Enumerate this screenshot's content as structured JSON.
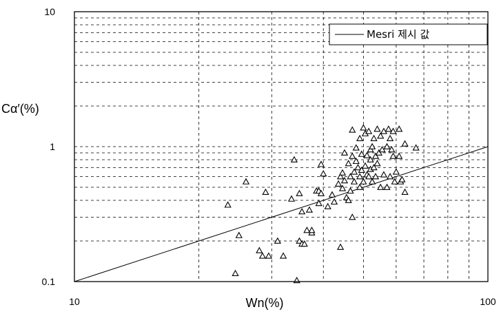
{
  "chart_data": {
    "type": "scatter",
    "xlabel": "Wn(%)",
    "ylabel": "Cα′(%)",
    "xscale": "log",
    "yscale": "log",
    "xlim": [
      10,
      100
    ],
    "ylim": [
      0.1,
      10
    ],
    "grid": true,
    "x_tick_labels": [
      "10",
      "100"
    ],
    "y_tick_labels": [
      "0.1",
      "1",
      "10"
    ],
    "legend_position": "top-right",
    "reference_line": {
      "name": "Mesri 제시 값",
      "points": [
        [
          10,
          0.1
        ],
        [
          100,
          1.0
        ]
      ]
    },
    "series": [
      {
        "marker": "triangle",
        "points": [
          [
            23.5,
            0.37
          ],
          [
            24.5,
            0.115
          ],
          [
            25,
            0.22
          ],
          [
            26,
            0.55
          ],
          [
            28,
            0.17
          ],
          [
            28.5,
            0.155
          ],
          [
            29,
            0.46
          ],
          [
            29.5,
            0.155
          ],
          [
            31,
            0.2
          ],
          [
            32,
            0.155
          ],
          [
            33.5,
            0.41
          ],
          [
            34,
            0.8
          ],
          [
            34.5,
            0.102
          ],
          [
            35,
            0.45
          ],
          [
            35,
            0.2
          ],
          [
            35.5,
            0.19
          ],
          [
            35.5,
            0.33
          ],
          [
            36,
            0.19
          ],
          [
            36.5,
            0.24
          ],
          [
            37,
            0.34
          ],
          [
            37.5,
            0.23
          ],
          [
            37.5,
            0.24
          ],
          [
            38.5,
            0.47
          ],
          [
            39,
            0.47
          ],
          [
            39.5,
            0.45
          ],
          [
            39.5,
            0.74
          ],
          [
            39,
            0.38
          ],
          [
            40,
            0.63
          ],
          [
            41,
            0.36
          ],
          [
            42,
            0.44
          ],
          [
            42.5,
            0.39
          ],
          [
            43.5,
            0.53
          ],
          [
            44,
            0.18
          ],
          [
            44,
            0.6
          ],
          [
            44.5,
            0.64
          ],
          [
            44.5,
            0.49
          ],
          [
            45,
            0.56
          ],
          [
            45,
            0.9
          ],
          [
            45.5,
            0.42
          ],
          [
            46,
            0.4
          ],
          [
            46,
            0.75
          ],
          [
            46.5,
            0.47
          ],
          [
            46.5,
            0.6
          ],
          [
            47,
            0.3
          ],
          [
            47,
            1.33
          ],
          [
            47,
            0.85
          ],
          [
            47.5,
            0.65
          ],
          [
            47.5,
            0.55
          ],
          [
            48,
            0.78
          ],
          [
            48,
            0.98
          ],
          [
            48.5,
            0.7
          ],
          [
            49,
            0.6
          ],
          [
            49,
            1.15
          ],
          [
            49,
            0.5
          ],
          [
            49.5,
            0.88
          ],
          [
            49.5,
            0.67
          ],
          [
            50,
            1.38
          ],
          [
            50,
            0.55
          ],
          [
            50.5,
            0.72
          ],
          [
            50.5,
            1.25
          ],
          [
            51,
            0.62
          ],
          [
            51,
            0.86
          ],
          [
            51.5,
            1.3
          ],
          [
            51.5,
            0.6
          ],
          [
            52,
            0.8
          ],
          [
            52,
            0.95
          ],
          [
            52,
            0.68
          ],
          [
            52.5,
            1.0
          ],
          [
            52.5,
            0.55
          ],
          [
            53,
            1.15
          ],
          [
            53,
            0.7
          ],
          [
            53.5,
            0.85
          ],
          [
            53.5,
            0.6
          ],
          [
            54,
            1.35
          ],
          [
            54,
            0.75
          ],
          [
            54.5,
            0.9
          ],
          [
            55,
            1.2
          ],
          [
            55,
            0.5
          ],
          [
            55.5,
            0.95
          ],
          [
            56,
            0.62
          ],
          [
            56,
            1.3
          ],
          [
            57,
            1.0
          ],
          [
            57,
            0.5
          ],
          [
            57.5,
            1.35
          ],
          [
            58,
            1.15
          ],
          [
            58,
            0.6
          ],
          [
            58.5,
            0.95
          ],
          [
            59,
            0.85
          ],
          [
            59,
            1.3
          ],
          [
            59.5,
            0.55
          ],
          [
            60,
            0.65
          ],
          [
            61,
            0.85
          ],
          [
            61,
            1.35
          ],
          [
            61.5,
            0.55
          ],
          [
            62,
            0.57
          ],
          [
            63,
            1.05
          ],
          [
            63,
            0.46
          ],
          [
            67,
            0.98
          ]
        ]
      }
    ]
  }
}
